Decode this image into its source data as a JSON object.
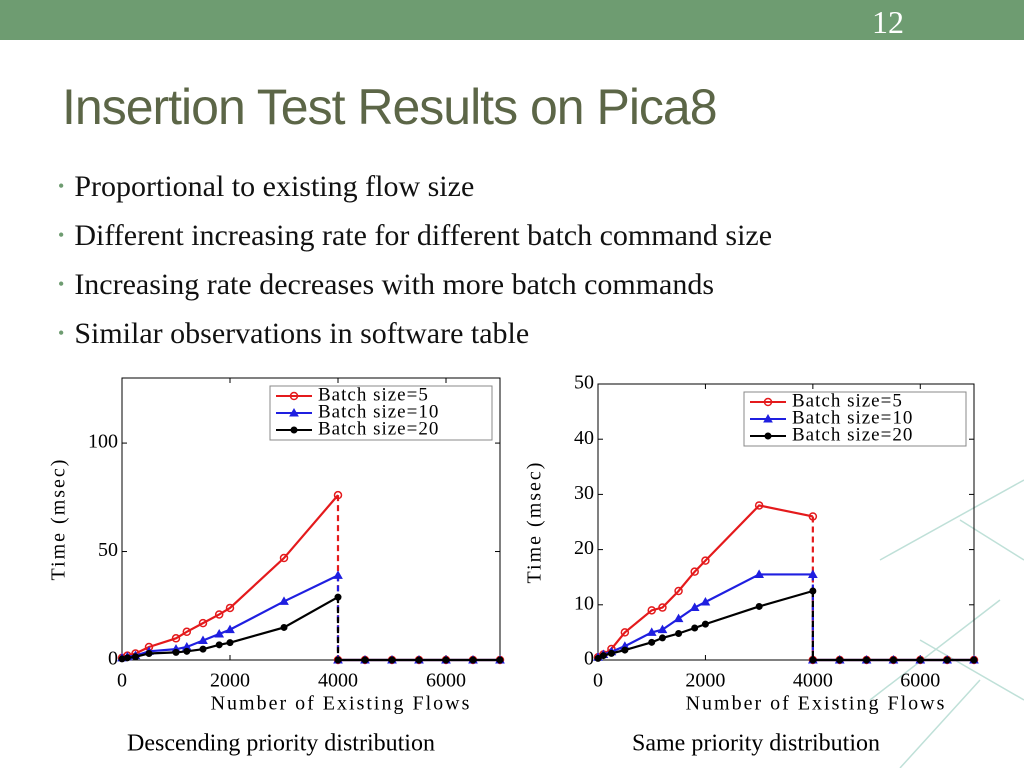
{
  "slide_number": "12",
  "title": "Insertion Test Results on Pica8",
  "bullets": [
    "Proportional to existing flow size",
    "Different increasing rate for different batch command size",
    "Increasing rate decreases with more batch commands",
    "Similar observations in software table"
  ],
  "chart_data": [
    {
      "type": "line",
      "caption": "Descending priority distribution",
      "xlabel": "Number of Existing Flows",
      "ylabel": "Time (msec)",
      "xlim": [
        0,
        7000
      ],
      "ylim": [
        0,
        130
      ],
      "xticks": [
        0,
        2000,
        4000,
        6000
      ],
      "yticks": [
        0,
        50,
        100
      ],
      "legend": "upper right",
      "x": [
        0,
        100,
        250,
        500,
        1000,
        1200,
        1500,
        1800,
        2000,
        3000,
        4000,
        4000,
        4500,
        5000,
        5500,
        6000,
        6500,
        7000
      ],
      "series": [
        {
          "name": "Batch size=5",
          "color": "#e41a1c",
          "marker": "o",
          "values": [
            1,
            2,
            3,
            6,
            10,
            13,
            17,
            21,
            24,
            47,
            76,
            0,
            0,
            0,
            0,
            0,
            0,
            0
          ]
        },
        {
          "name": "Batch size=10",
          "color": "#1f1fe0",
          "marker": "^",
          "values": [
            1,
            1.5,
            2,
            4,
            5,
            6,
            9,
            12,
            14,
            27,
            39,
            0,
            0,
            0,
            0,
            0,
            0,
            0
          ]
        },
        {
          "name": "Batch size=20",
          "color": "#000000",
          "marker": "*",
          "values": [
            0.5,
            1,
            1.5,
            3,
            3.5,
            4,
            5,
            7,
            8,
            15,
            29,
            0,
            0,
            0,
            0,
            0,
            0,
            0
          ]
        }
      ]
    },
    {
      "type": "line",
      "caption": "Same priority distribution",
      "xlabel": "Number of Existing Flows",
      "ylabel": "Time (msec)",
      "xlim": [
        0,
        7000
      ],
      "ylim": [
        0,
        50
      ],
      "xticks": [
        0,
        2000,
        4000,
        6000
      ],
      "yticks": [
        0,
        10,
        20,
        30,
        40,
        50
      ],
      "legend": "upper right",
      "x": [
        0,
        100,
        250,
        500,
        1000,
        1200,
        1500,
        1800,
        2000,
        3000,
        4000,
        4000,
        4500,
        5000,
        5500,
        6000,
        6500,
        7000
      ],
      "series": [
        {
          "name": "Batch size=5",
          "color": "#e41a1c",
          "marker": "o",
          "values": [
            0.5,
            1,
            2,
            5,
            9,
            9.5,
            12.5,
            16,
            18,
            28,
            26,
            0,
            0,
            0,
            0,
            0,
            0,
            0
          ]
        },
        {
          "name": "Batch size=10",
          "color": "#1f1fe0",
          "marker": "^",
          "values": [
            0.5,
            1,
            1.5,
            2.5,
            5,
            5.5,
            7.5,
            9.5,
            10.5,
            15.5,
            15.5,
            0,
            0,
            0,
            0,
            0,
            0,
            0
          ]
        },
        {
          "name": "Batch size=20",
          "color": "#000000",
          "marker": "*",
          "values": [
            0.3,
            0.8,
            1.2,
            1.8,
            3.2,
            4,
            4.8,
            5.8,
            6.5,
            9.7,
            12.5,
            0,
            0,
            0,
            0,
            0,
            0,
            0
          ]
        }
      ]
    }
  ]
}
